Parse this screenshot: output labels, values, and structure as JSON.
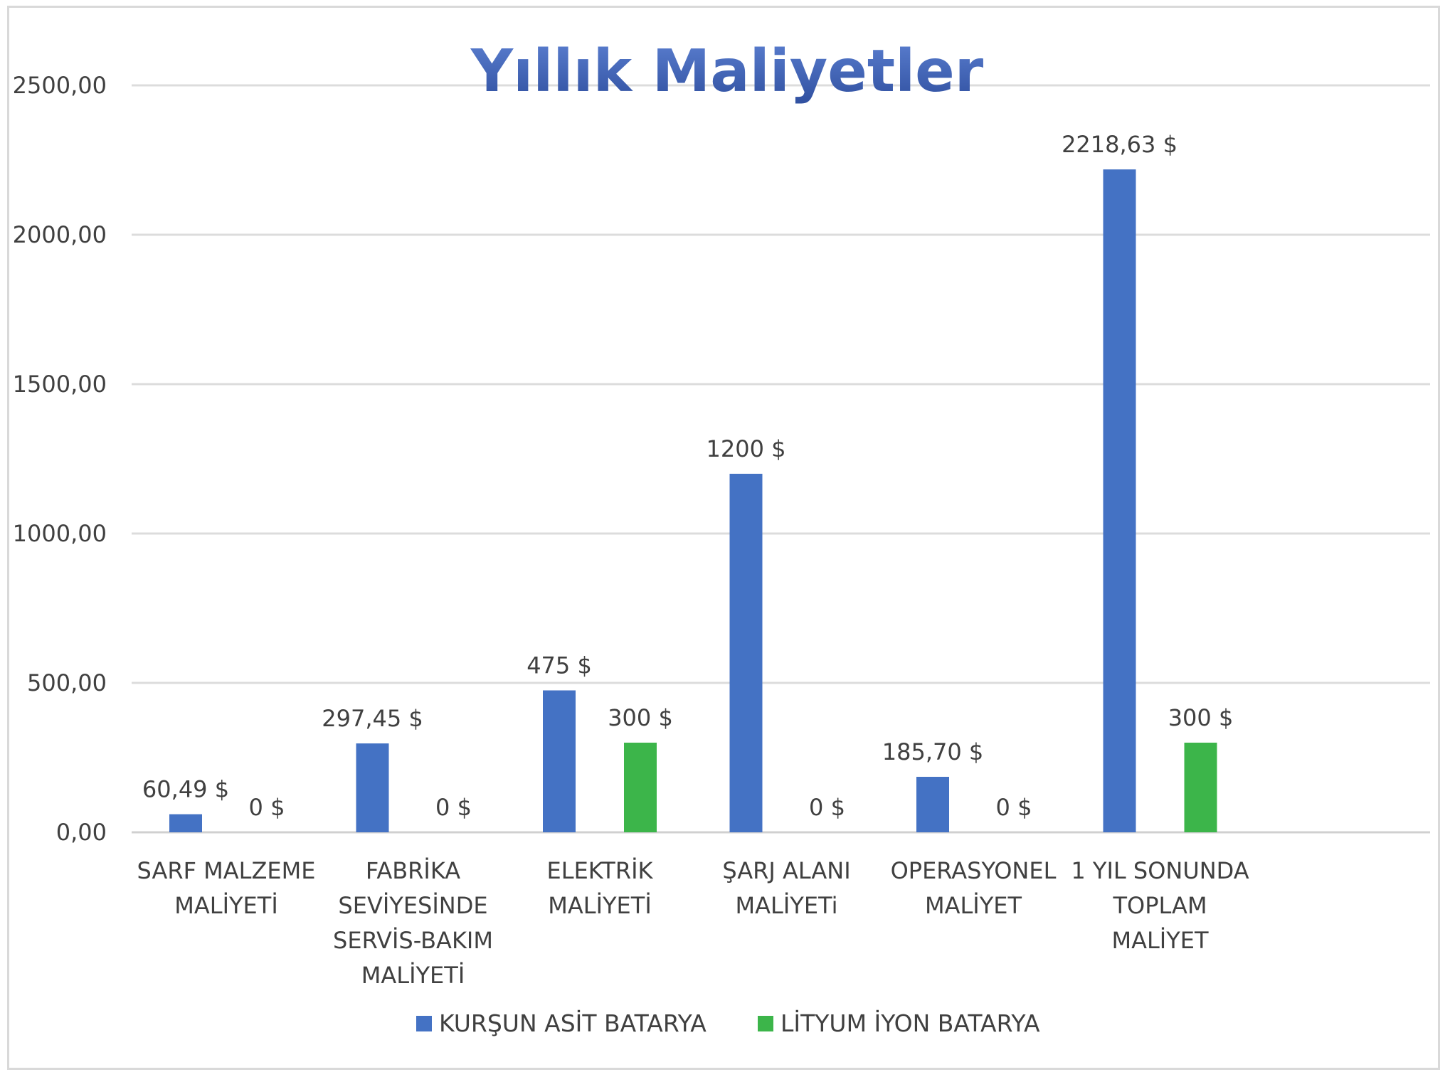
{
  "chart_data": {
    "type": "bar",
    "title": "Yıllık Maliyetler",
    "ylim": [
      0,
      2500
    ],
    "yticks": [
      "0,00",
      "500,00",
      "1000,00",
      "1500,00",
      "2000,00",
      "2500,00"
    ],
    "ytick_values": [
      0,
      500,
      1000,
      1500,
      2000,
      2500
    ],
    "grid": true,
    "legend_position": "bottom",
    "categories": [
      [
        "SARF MALZEME",
        "MALİYETİ"
      ],
      [
        "FABRİKA",
        "SEVİYESİNDE",
        "SERVİS-BAKIM",
        "MALİYETİ"
      ],
      [
        "ELEKTRİK",
        "MALİYETİ"
      ],
      [
        "ŞARJ ALANI",
        "MALİYETi"
      ],
      [
        "OPERASYONEL",
        "MALİYET"
      ],
      [
        "1 YIL SONUNDA",
        "TOPLAM",
        "MALİYET"
      ]
    ],
    "series": [
      {
        "name": "KURŞUN ASİT BATARYA",
        "color": "#4472c4",
        "values": [
          60.49,
          297.45,
          475,
          1200,
          185.7,
          2218.63
        ],
        "labels": [
          "60,49 $",
          "297,45 $",
          "475 $",
          "1200 $",
          "185,70 $",
          "2218,63 $"
        ]
      },
      {
        "name": "LİTYUM İYON BATARYA",
        "color": "#3cb54a",
        "values": [
          0,
          0,
          300,
          0,
          0,
          300
        ],
        "labels": [
          "0 $",
          "0 $",
          "300 $",
          "0 $",
          "0 $",
          "300 $"
        ]
      }
    ],
    "title_color": "#4a6fc0"
  }
}
